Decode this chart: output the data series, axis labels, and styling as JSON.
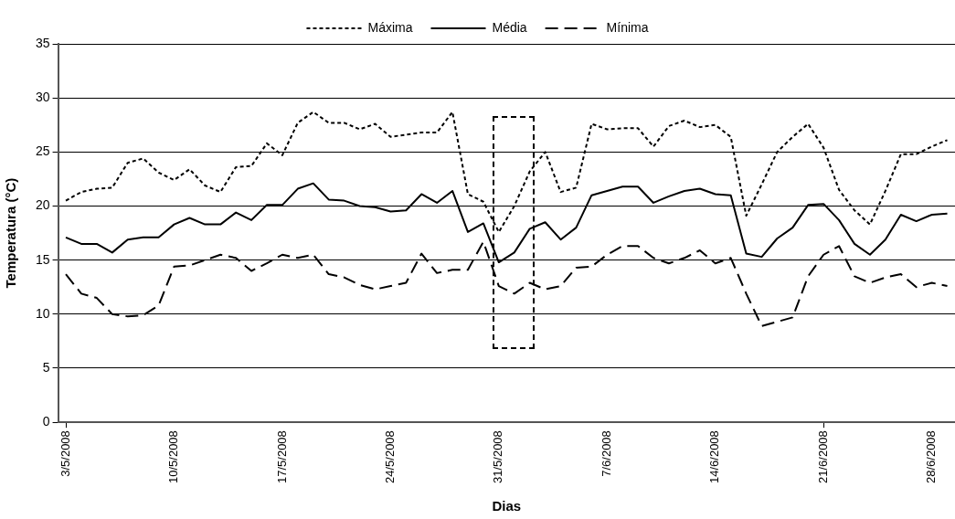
{
  "chart_data": {
    "type": "line",
    "xlabel": "Dias",
    "ylabel": "Temperatura (°C)",
    "categories": [
      "3/5/2008",
      null,
      null,
      null,
      null,
      null,
      null,
      "10/5/2008",
      null,
      null,
      null,
      null,
      null,
      null,
      "17/5/2008",
      null,
      null,
      null,
      null,
      null,
      null,
      "24/5/2008",
      null,
      null,
      null,
      null,
      null,
      null,
      "31/5/2008",
      null,
      null,
      null,
      null,
      null,
      null,
      "7/6/2008",
      null,
      null,
      null,
      null,
      null,
      null,
      "14/6/2008",
      null,
      null,
      null,
      null,
      null,
      null,
      "21/6/2008",
      null,
      null,
      null,
      null,
      null,
      null,
      "28/6/2008",
      null
    ],
    "series": [
      {
        "name": "Máxima",
        "color": "#000000",
        "line_style": "dotted",
        "values": [
          20.5,
          21.3,
          21.6,
          21.7,
          24.0,
          24.4,
          23.1,
          22.4,
          23.4,
          21.9,
          21.3,
          23.6,
          23.7,
          25.8,
          24.7,
          27.7,
          28.7,
          27.7,
          27.7,
          27.1,
          27.6,
          26.4,
          26.6,
          26.8,
          26.8,
          28.7,
          21.1,
          20.4,
          17.6,
          20.0,
          23.2,
          25.0,
          21.3,
          21.7,
          27.6,
          27.1,
          27.2,
          27.2,
          25.5,
          27.4,
          27.9,
          27.3,
          27.5,
          26.4,
          19.1,
          22.0,
          25.0,
          26.4,
          27.6,
          25.4,
          21.5,
          19.6,
          18.3,
          21.4,
          24.8,
          24.8,
          25.5,
          26.1
        ]
      },
      {
        "name": "Média",
        "color": "#000000",
        "line_style": "solid",
        "values": [
          17.1,
          16.5,
          16.5,
          15.7,
          16.9,
          17.1,
          17.1,
          18.3,
          18.9,
          18.3,
          18.3,
          19.4,
          18.7,
          20.1,
          20.1,
          21.6,
          22.1,
          20.6,
          20.5,
          20.0,
          19.9,
          19.5,
          19.6,
          21.1,
          20.3,
          21.4,
          17.6,
          18.4,
          14.8,
          15.7,
          17.9,
          18.5,
          16.9,
          18.0,
          21.0,
          21.4,
          21.8,
          21.8,
          20.3,
          20.9,
          21.4,
          21.6,
          21.1,
          21.0,
          15.6,
          15.3,
          17.0,
          18.0,
          20.1,
          20.2,
          18.7,
          16.5,
          15.5,
          16.9,
          19.2,
          18.6,
          19.2,
          19.3
        ]
      },
      {
        "name": "Mínima",
        "color": "#000000",
        "line_style": "dashed",
        "values": [
          13.7,
          11.9,
          11.5,
          10.0,
          9.8,
          9.9,
          10.8,
          14.4,
          14.5,
          15.0,
          15.5,
          15.2,
          14.0,
          14.7,
          15.5,
          15.2,
          15.5,
          13.7,
          13.4,
          12.7,
          12.3,
          12.6,
          12.9,
          15.6,
          13.8,
          14.1,
          14.1,
          16.7,
          12.6,
          11.9,
          12.9,
          12.3,
          12.6,
          14.3,
          14.4,
          15.5,
          16.3,
          16.3,
          15.2,
          14.7,
          15.2,
          15.9,
          14.7,
          15.2,
          11.9,
          8.9,
          9.3,
          9.7,
          13.5,
          15.5,
          16.3,
          13.5,
          12.9,
          13.4,
          13.7,
          12.5,
          12.9,
          12.6
        ]
      }
    ],
    "ylim": [
      0,
      35
    ],
    "yticks": [
      0,
      5,
      10,
      15,
      20,
      25,
      30,
      35
    ],
    "grid": "y",
    "legend": "top",
    "marker": "none"
  }
}
